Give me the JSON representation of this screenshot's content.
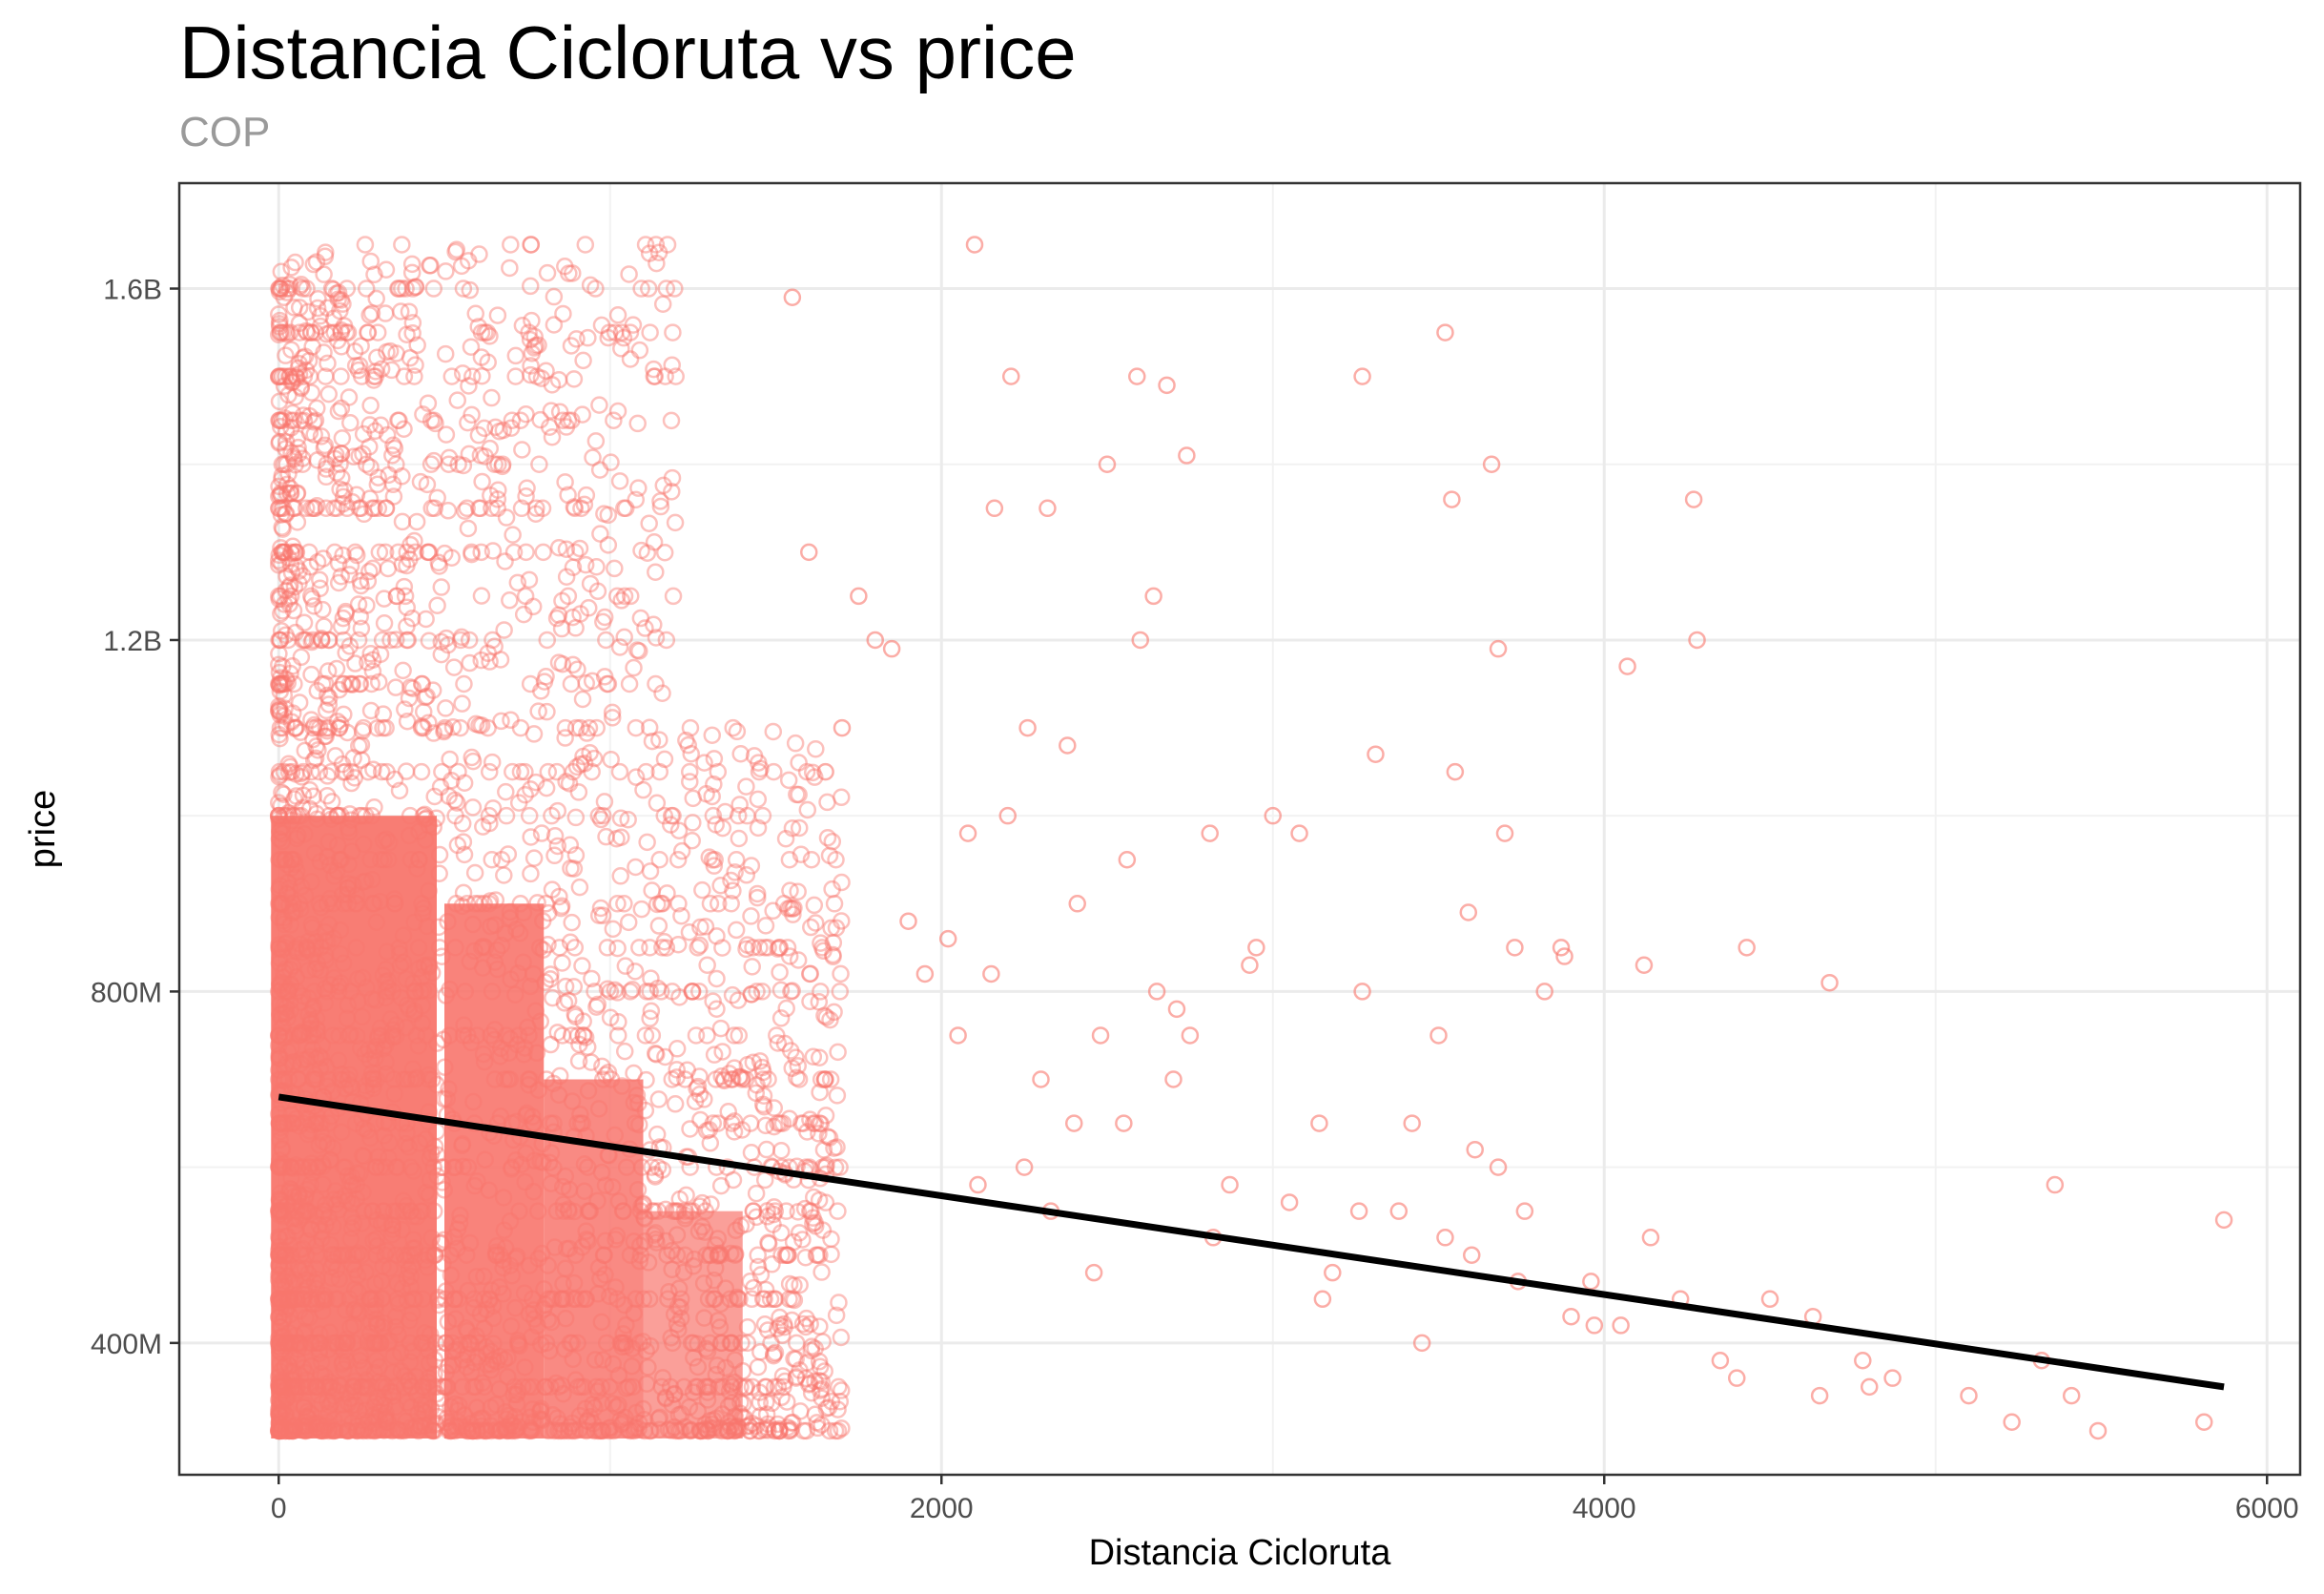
{
  "chart_data": {
    "type": "scatter",
    "title": "Distancia Cicloruta vs price",
    "subtitle": "COP",
    "xlabel": "Distancia Cicloruta",
    "ylabel": "price",
    "xlim": [
      -300,
      6100
    ],
    "ylim": [
      250000000,
      1720000000
    ],
    "x_ticks": [
      0,
      2000,
      4000,
      6000
    ],
    "x_tick_labels": [
      "0",
      "2000",
      "4000",
      "6000"
    ],
    "y_ticks": [
      400000000,
      800000000,
      1200000000,
      1600000000
    ],
    "y_tick_labels": [
      "400M",
      "800M",
      "1.2B",
      "1.6B"
    ],
    "grid": true,
    "point_color": "#F8766D",
    "trend_line_color": "#000000",
    "trend_line": {
      "x": [
        0,
        5870
      ],
      "y": [
        680000000,
        350000000
      ]
    },
    "points": {
      "x": [
        2100,
        2210,
        2590,
        2680,
        3270,
        3520,
        3660,
        4270,
        2740,
        3540,
        2500,
        4070,
        2160,
        2320,
        2640,
        3680,
        4280,
        2260,
        2380,
        2600,
        3000,
        3310,
        2200,
        2080,
        3550,
        2810,
        3080,
        3700,
        2410,
        2560,
        3590,
        3880,
        4430,
        3820,
        2930,
        4120,
        3270,
        4680,
        3730,
        3870,
        2480,
        2650,
        2710,
        2750,
        2950,
        3500,
        3420,
        2300,
        3140,
        3260,
        3610,
        3680,
        3760,
        5360,
        5870,
        4140,
        3960,
        3180,
        3520,
        3740,
        3970,
        4230,
        4500,
        4630,
        4780,
        4870,
        5100,
        5230,
        5410,
        5490,
        5810,
        2330,
        2250,
        2150,
        2020,
        2550,
        2870,
        3380,
        3900,
        4350,
        4800,
        5320,
        1800,
        1850,
        1900,
        1950,
        2050,
        1750,
        1700,
        1650,
        1600,
        1550,
        2400,
        2700,
        3050,
        3600,
        4050,
        4400,
        4650,
        3450,
        3150,
        2820,
        2460,
        2110
      ],
      "y": [
        1650000000,
        1500000000,
        1500000000,
        1490000000,
        1500000000,
        1550000000,
        1400000000,
        1360000000,
        1410000000,
        1360000000,
        1400000000,
        1170000000,
        1350000000,
        1350000000,
        1250000000,
        1190000000,
        1200000000,
        1100000000,
        1080000000,
        1200000000,
        1000000000,
        1070000000,
        1000000000,
        980000000,
        1050000000,
        980000000,
        980000000,
        980000000,
        900000000,
        950000000,
        890000000,
        840000000,
        850000000,
        800000000,
        830000000,
        830000000,
        800000000,
        810000000,
        850000000,
        850000000,
        750000000,
        800000000,
        780000000,
        750000000,
        850000000,
        750000000,
        650000000,
        700000000,
        650000000,
        550000000,
        620000000,
        600000000,
        550000000,
        580000000,
        540000000,
        520000000,
        470000000,
        480000000,
        520000000,
        470000000,
        420000000,
        450000000,
        450000000,
        430000000,
        380000000,
        360000000,
        340000000,
        310000000,
        340000000,
        300000000,
        310000000,
        550000000,
        600000000,
        820000000,
        860000000,
        650000000,
        580000000,
        550000000,
        430000000,
        380000000,
        350000000,
        380000000,
        1200000000,
        1190000000,
        880000000,
        820000000,
        750000000,
        1250000000,
        1100000000,
        1050000000,
        1300000000,
        1590000000,
        650000000,
        700000000,
        560000000,
        500000000,
        420000000,
        360000000,
        340000000,
        400000000,
        450000000,
        520000000,
        480000000,
        580000000
      ]
    },
    "dense_region_note": ""
  }
}
